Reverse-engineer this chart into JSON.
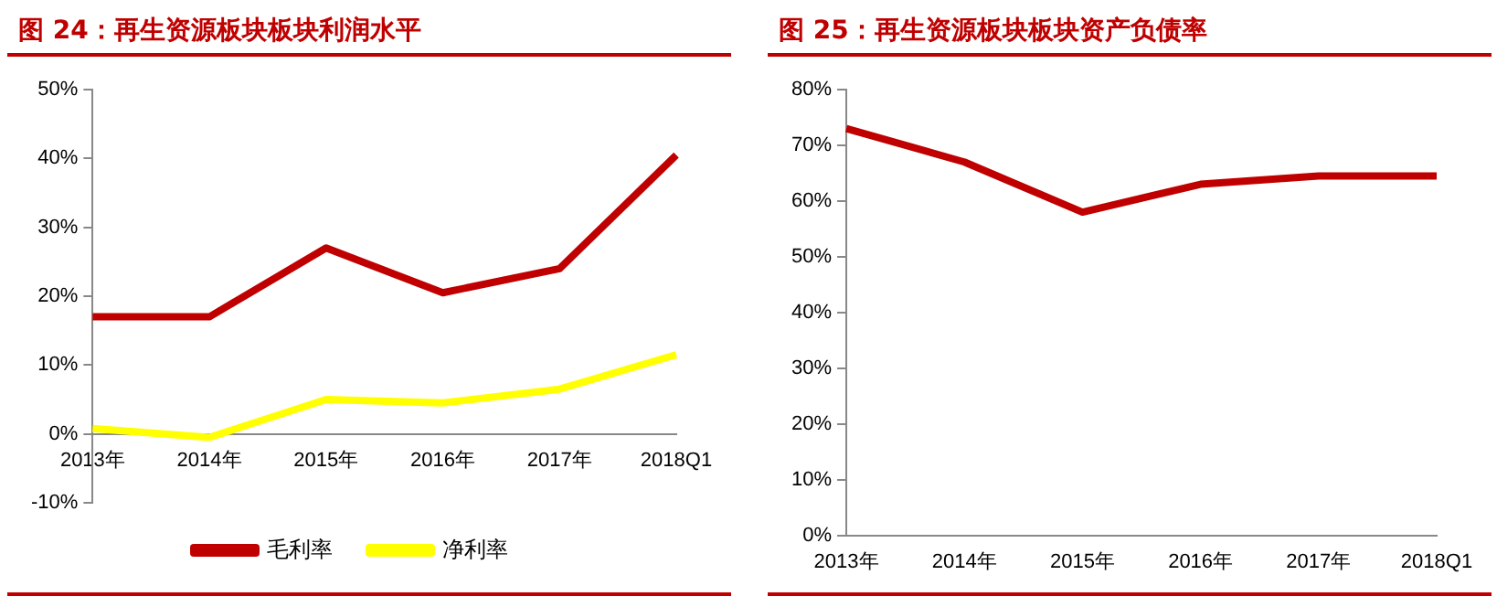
{
  "chart_data": [
    {
      "type": "line",
      "title": "图 24：再生资源板块板块利润水平",
      "categories": [
        "2013年",
        "2014年",
        "2015年",
        "2016年",
        "2017年",
        "2018Q1"
      ],
      "series": [
        {
          "name": "毛利率",
          "color": "#c00000",
          "values": [
            17,
            17,
            27,
            20.5,
            24,
            40.5
          ]
        },
        {
          "name": "净利率",
          "color": "#ffff00",
          "values": [
            0.8,
            -0.5,
            5,
            4.5,
            6.5,
            11.5
          ]
        }
      ],
      "ylim": [
        -10,
        50
      ],
      "yticks": [
        {
          "value": -10,
          "label": "-10%"
        },
        {
          "value": 0,
          "label": "0%"
        },
        {
          "value": 10,
          "label": "10%"
        },
        {
          "value": 20,
          "label": "20%"
        },
        {
          "value": 30,
          "label": "30%"
        },
        {
          "value": 40,
          "label": "40%"
        },
        {
          "value": 50,
          "label": "50%"
        }
      ],
      "grid": false,
      "legend": "bottom",
      "marker": "none",
      "line_style": "solid"
    },
    {
      "type": "line",
      "title": "图 25：再生资源板块板块资产负债率",
      "categories": [
        "2013年",
        "2014年",
        "2015年",
        "2016年",
        "2017年",
        "2018Q1"
      ],
      "series": [
        {
          "color": "#c00000",
          "values": [
            73,
            67,
            58,
            63,
            64.5,
            64.5
          ]
        }
      ],
      "ylim": [
        0,
        80
      ],
      "yticks": [
        {
          "value": 0,
          "label": "0%"
        },
        {
          "value": 10,
          "label": "10%"
        },
        {
          "value": 20,
          "label": "20%"
        },
        {
          "value": 30,
          "label": "30%"
        },
        {
          "value": 40,
          "label": "40%"
        },
        {
          "value": 50,
          "label": "50%"
        },
        {
          "value": 60,
          "label": "60%"
        },
        {
          "value": 70,
          "label": "70%"
        },
        {
          "value": 80,
          "label": "80%"
        }
      ],
      "grid": false,
      "legend": false,
      "marker": "none",
      "line_style": "solid"
    }
  ]
}
